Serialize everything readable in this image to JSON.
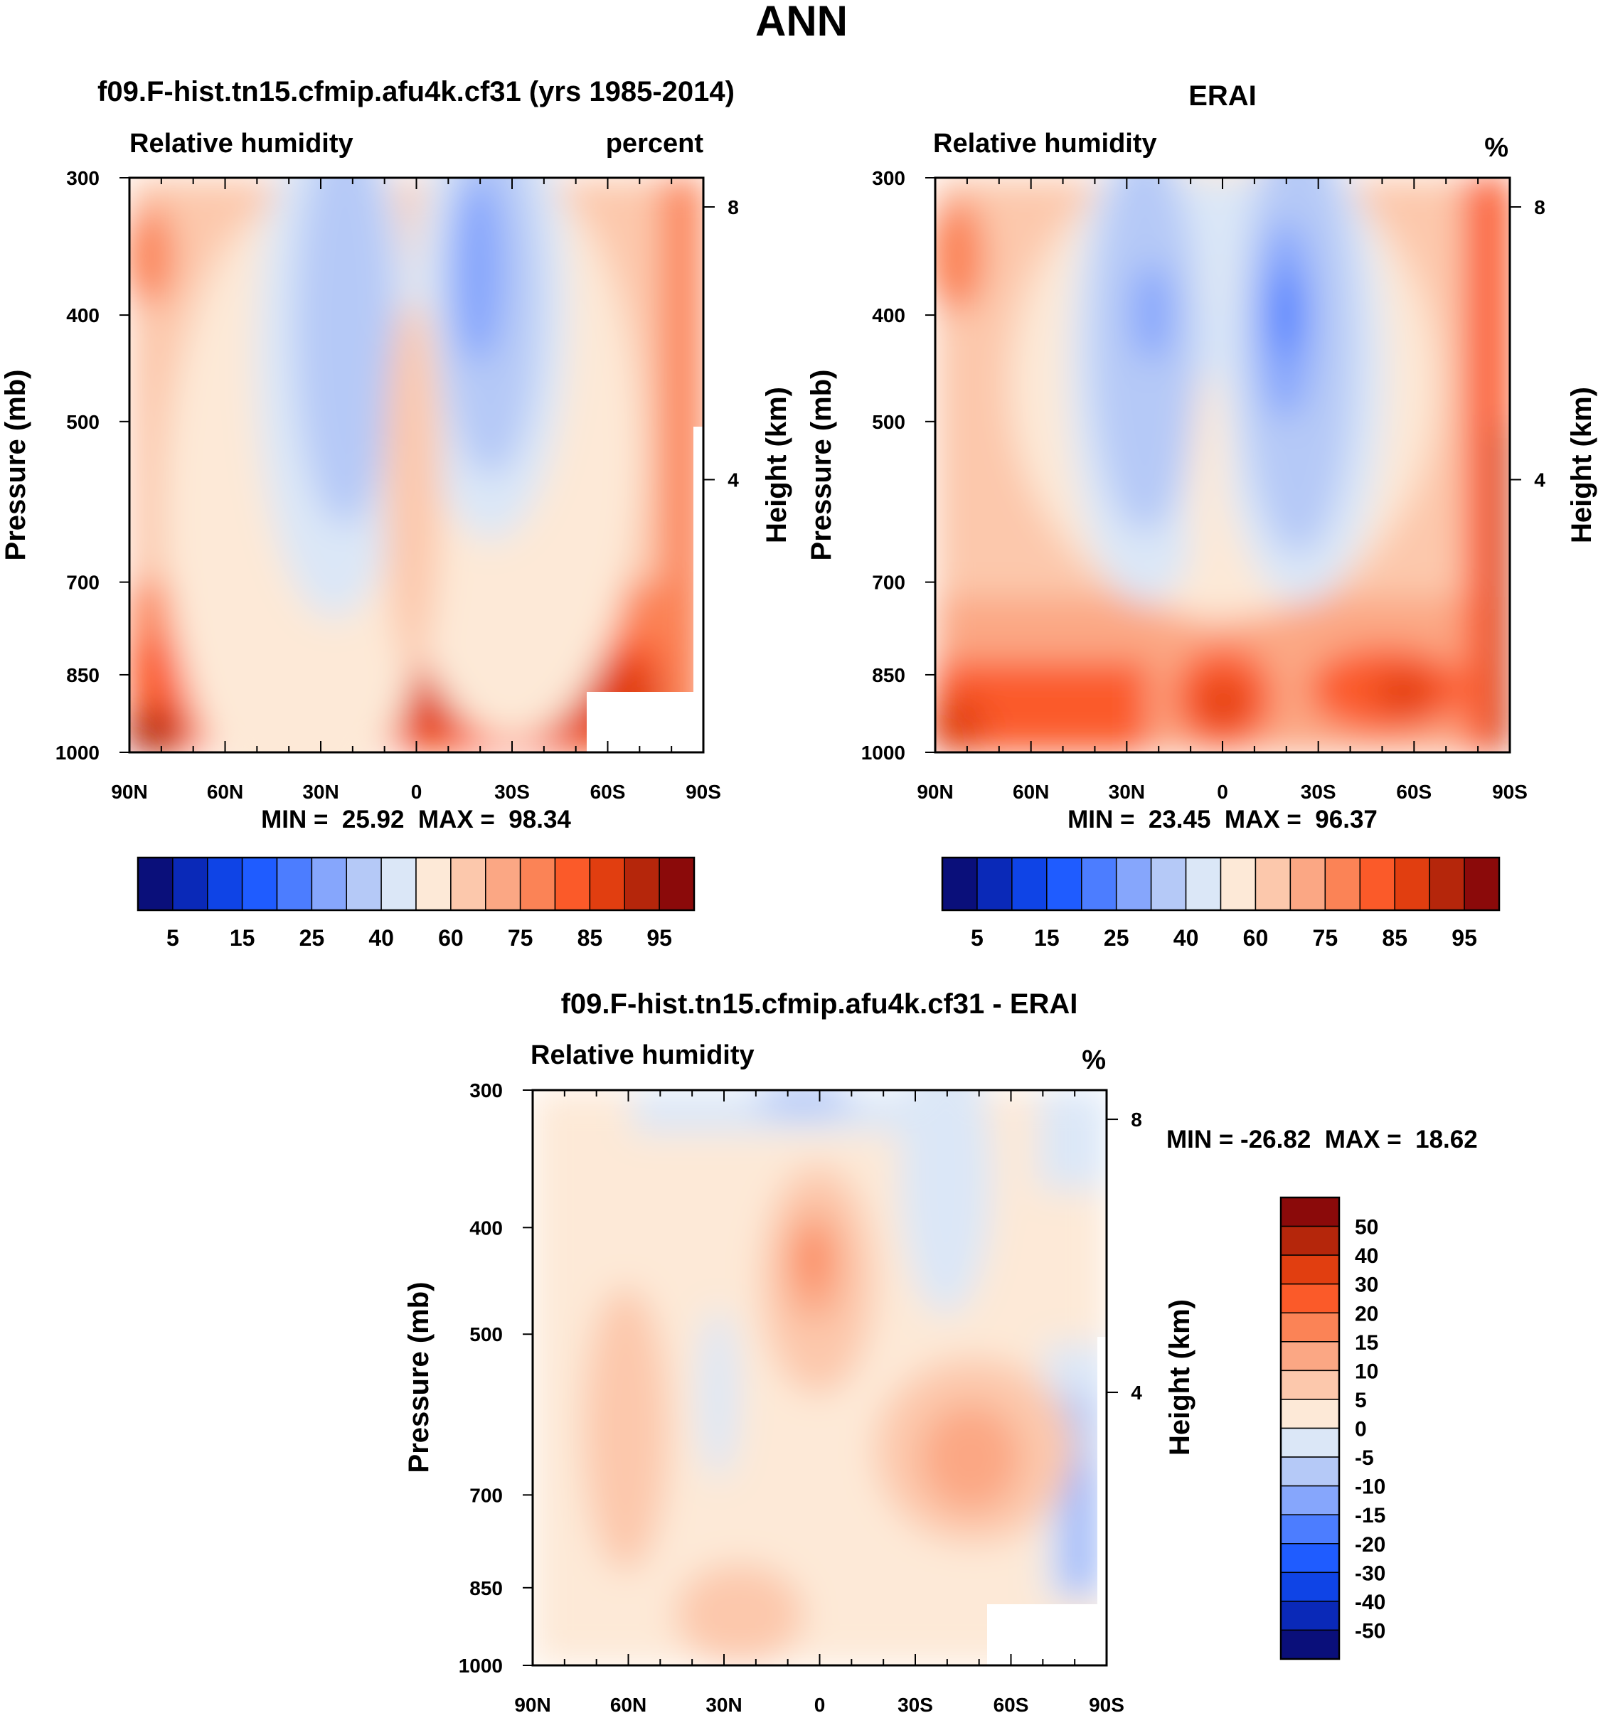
{
  "page_title": "ANN",
  "chart_data": [
    {
      "id": "model",
      "type": "heatmap",
      "title": "f09.F-hist.tn15.cfmip.afu4k.cf31 (yrs 1985-2014)",
      "subtitle_left": "Relative humidity",
      "subtitle_right": "percent",
      "ylabel": "Pressure (mb)",
      "ylabel_right": "Height (km)",
      "x_ticks": [
        "90N",
        "60N",
        "30N",
        "0",
        "30S",
        "60S",
        "90S"
      ],
      "y_ticks": [
        "300",
        "400",
        "500",
        "700",
        "850",
        "1000"
      ],
      "y_ticks_right": [
        "8",
        "4"
      ],
      "xlim": [
        90,
        -90
      ],
      "ylim": [
        1000,
        300
      ],
      "stats": "MIN =  25.92  MAX =  98.34",
      "min": 25.92,
      "max": 98.34,
      "colorbar_labels": [
        "5",
        "15",
        "25",
        "40",
        "60",
        "75",
        "85",
        "95"
      ]
    },
    {
      "id": "obs",
      "type": "heatmap",
      "title": "ERAI",
      "subtitle_left": "Relative humidity",
      "subtitle_right": "%",
      "ylabel": "Pressure (mb)",
      "ylabel_right": "Height (km)",
      "x_ticks": [
        "90N",
        "60N",
        "30N",
        "0",
        "30S",
        "60S",
        "90S"
      ],
      "y_ticks": [
        "300",
        "400",
        "500",
        "700",
        "850",
        "1000"
      ],
      "y_ticks_right": [
        "8",
        "4"
      ],
      "xlim": [
        90,
        -90
      ],
      "ylim": [
        1000,
        300
      ],
      "stats": "MIN =  23.45  MAX =  96.37",
      "min": 23.45,
      "max": 96.37,
      "colorbar_labels": [
        "5",
        "15",
        "25",
        "40",
        "60",
        "75",
        "85",
        "95"
      ]
    },
    {
      "id": "diff",
      "type": "heatmap",
      "title": "f09.F-hist.tn15.cfmip.afu4k.cf31 - ERAI",
      "subtitle_left": "Relative humidity",
      "subtitle_right": "%",
      "ylabel": "Pressure (mb)",
      "ylabel_right": "Height (km)",
      "x_ticks": [
        "90N",
        "60N",
        "30N",
        "0",
        "30S",
        "60S",
        "90S"
      ],
      "y_ticks": [
        "300",
        "400",
        "500",
        "700",
        "850",
        "1000"
      ],
      "y_ticks_right": [
        "8",
        "4"
      ],
      "xlim": [
        90,
        -90
      ],
      "ylim": [
        1000,
        300
      ],
      "stats": "MIN = -26.82  MAX =  18.62",
      "min": -26.82,
      "max": 18.62,
      "colorbar_labels": [
        "50",
        "40",
        "30",
        "20",
        "15",
        "10",
        "5",
        "0",
        "-5",
        "-10",
        "-15",
        "-20",
        "-30",
        "-40",
        "-50"
      ]
    }
  ],
  "colors": {
    "abs_scale": [
      "#0a0f7a",
      "#0a29b8",
      "#0f44e6",
      "#1f5cff",
      "#4c7dff",
      "#86a6fc",
      "#b5c9f7",
      "#dbe7f7",
      "#fde9d7",
      "#fcc8ac",
      "#fba784",
      "#fb8356",
      "#fb5a29",
      "#e13e10",
      "#b5260b",
      "#8b0a0a"
    ],
    "diff_scale": [
      "#8b0a0a",
      "#b5260b",
      "#e13e10",
      "#fb5a29",
      "#fb8356",
      "#fba784",
      "#fcc8ac",
      "#fde9d7",
      "#dbe7f7",
      "#b5c9f7",
      "#86a6fc",
      "#4c7dff",
      "#1f5cff",
      "#0f44e6",
      "#0a29b8",
      "#0a0f7a"
    ]
  }
}
